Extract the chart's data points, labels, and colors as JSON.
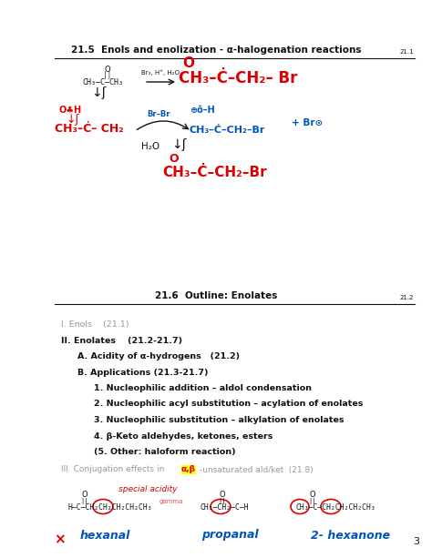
{
  "bg_color": "#ffffff",
  "colors": {
    "red": "#dd0000",
    "blue": "#0055bb",
    "black": "#111111",
    "gray": "#999999",
    "dark_gray": "#555555"
  },
  "section1_title": "21.5  Enols and enolization - α-halogenation reactions",
  "section1_num": "21.1",
  "section2_title": "21.6  Outline: Enolates",
  "section2_num": "21.2",
  "page_num": "3",
  "outline": [
    {
      "text": "I. Enols    (21.1)",
      "indent": 0,
      "bold": false,
      "gray": true
    },
    {
      "text": "II. Enolates    (21.2-21.7)",
      "indent": 0,
      "bold": true,
      "gray": false
    },
    {
      "text": "A. Acidity of α-hydrogens   (21.2)",
      "indent": 1,
      "bold": true,
      "gray": false
    },
    {
      "text": "B. Applications (21.3-21.7)",
      "indent": 1,
      "bold": true,
      "gray": false
    },
    {
      "text": "1. Nucleophilic addition – aldol condensation",
      "indent": 2,
      "bold": true,
      "gray": false
    },
    {
      "text": "2. Nucleophilic acyl substitution – acylation of enolates",
      "indent": 2,
      "bold": true,
      "gray": false
    },
    {
      "text": "3. Nucleophilic substitution – alkylation of enolates",
      "indent": 2,
      "bold": true,
      "gray": false
    },
    {
      "text": "4. β-Keto aldehydes, ketones, esters",
      "indent": 2,
      "bold": true,
      "gray": false
    },
    {
      "text": "(5. Other: haloform reaction)",
      "indent": 2,
      "bold": true,
      "gray": false
    }
  ]
}
